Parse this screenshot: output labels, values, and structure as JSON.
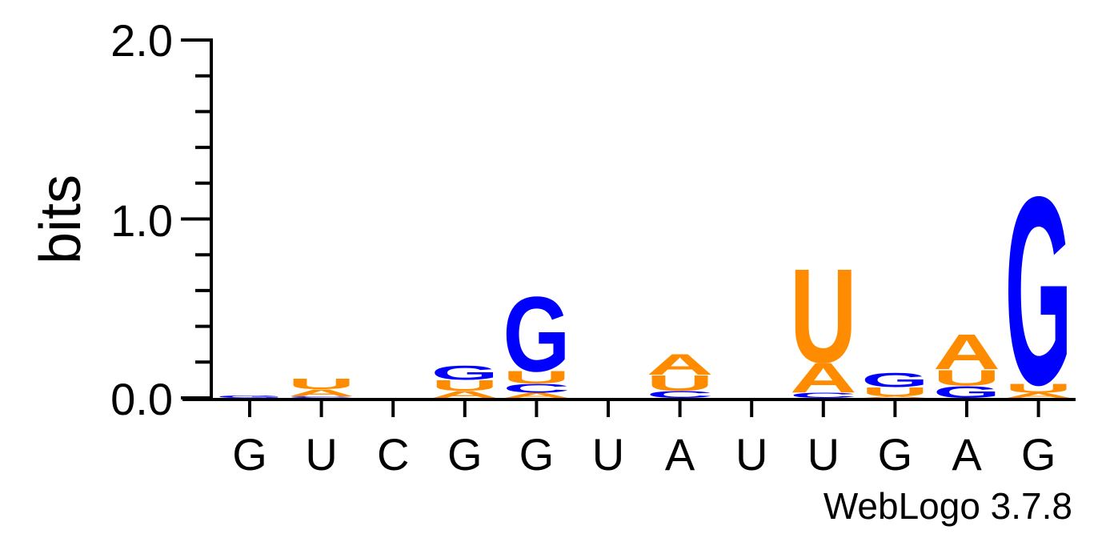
{
  "chart_data": {
    "type": "sequence-logo",
    "ylabel": "bits",
    "ylim": [
      0,
      2
    ],
    "yticks": [
      "0.0",
      "1.0",
      "2.0"
    ],
    "minor_tick_step": 0.2,
    "positions": [
      "G",
      "U",
      "C",
      "G",
      "G",
      "U",
      "A",
      "U",
      "U",
      "G",
      "A",
      "G"
    ],
    "colors": {
      "A": "#ff8c00",
      "U": "#ff8c00",
      "G": "#0000ff",
      "C": "#0000ff"
    },
    "stacks": [
      [
        [
          "G",
          0.015
        ]
      ],
      [
        [
          "C",
          0.01
        ],
        [
          "A",
          0.04
        ],
        [
          "U",
          0.06
        ]
      ],
      [],
      [
        [
          "A",
          0.04
        ],
        [
          "U",
          0.06
        ],
        [
          "G",
          0.08
        ]
      ],
      [
        [
          "A",
          0.03
        ],
        [
          "C",
          0.05
        ],
        [
          "U",
          0.07
        ],
        [
          "G",
          0.43
        ]
      ],
      [],
      [
        [
          "C",
          0.04
        ],
        [
          "U",
          0.09
        ],
        [
          "A",
          0.12
        ]
      ],
      [],
      [
        [
          "C",
          0.03
        ],
        [
          "A",
          0.17
        ],
        [
          "U",
          0.54
        ]
      ],
      [
        [
          "A",
          0.01
        ],
        [
          "U",
          0.05
        ],
        [
          "G",
          0.08
        ]
      ],
      [
        [
          "G",
          0.07
        ],
        [
          "U",
          0.09
        ],
        [
          "A",
          0.2
        ]
      ],
      [
        [
          "A",
          0.03
        ],
        [
          "U",
          0.05
        ],
        [
          "G",
          1.08
        ]
      ]
    ],
    "watermark": "WebLogo 3.7.8"
  }
}
